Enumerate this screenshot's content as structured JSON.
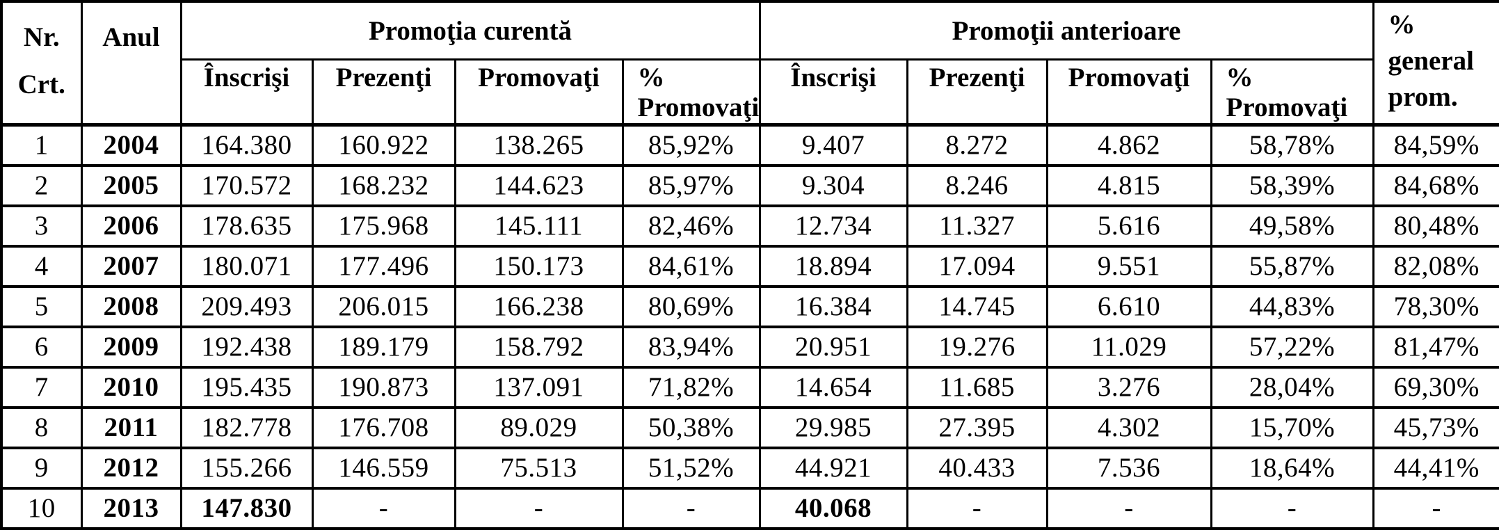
{
  "table": {
    "header": {
      "nr_crt": [
        "Nr.",
        "Crt."
      ],
      "anul": "Anul",
      "group_current": "Promoţia curentă",
      "group_previous": "Promoţii anterioare",
      "inscrisi": "Înscrişi",
      "prezenti": "Prezenţi",
      "promovati": "Promovaţi",
      "pct_promovati": [
        "%",
        "Promovaţi"
      ],
      "general": [
        "%",
        "general",
        "prom."
      ]
    },
    "rows": [
      [
        "1",
        "2004",
        "164.380",
        "160.922",
        "138.265",
        "85,92%",
        "9.407",
        "8.272",
        "4.862",
        "58,78%",
        "84,59%"
      ],
      [
        "2",
        "2005",
        "170.572",
        "168.232",
        "144.623",
        "85,97%",
        "9.304",
        "8.246",
        "4.815",
        "58,39%",
        "84,68%"
      ],
      [
        "3",
        "2006",
        "178.635",
        "175.968",
        "145.111",
        "82,46%",
        "12.734",
        "11.327",
        "5.616",
        "49,58%",
        "80,48%"
      ],
      [
        "4",
        "2007",
        "180.071",
        "177.496",
        "150.173",
        "84,61%",
        "18.894",
        "17.094",
        "9.551",
        "55,87%",
        "82,08%"
      ],
      [
        "5",
        "2008",
        "209.493",
        "206.015",
        "166.238",
        "80,69%",
        "16.384",
        "14.745",
        "6.610",
        "44,83%",
        "78,30%"
      ],
      [
        "6",
        "2009",
        "192.438",
        "189.179",
        "158.792",
        "83,94%",
        "20.951",
        "19.276",
        "11.029",
        "57,22%",
        "81,47%"
      ],
      [
        "7",
        "2010",
        "195.435",
        "190.873",
        "137.091",
        "71,82%",
        "14.654",
        "11.685",
        "3.276",
        "28,04%",
        "69,30%"
      ],
      [
        "8",
        "2011",
        "182.778",
        "176.708",
        "89.029",
        "50,38%",
        "29.985",
        "27.395",
        "4.302",
        "15,70%",
        "45,73%"
      ],
      [
        "9",
        "2012",
        "155.266",
        "146.559",
        "75.513",
        "51,52%",
        "44.921",
        "40.433",
        "7.536",
        "18,64%",
        "44,41%"
      ],
      [
        "10",
        "2013",
        "147.830",
        "-",
        "-",
        "-",
        "40.068",
        "-",
        "-",
        "-",
        "-"
      ]
    ]
  }
}
